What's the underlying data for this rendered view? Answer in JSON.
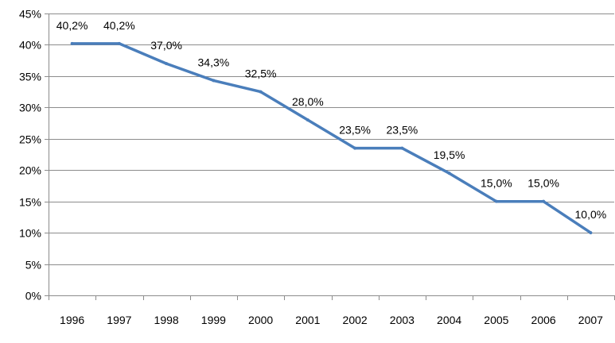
{
  "chart_data": {
    "type": "line",
    "categories": [
      "1996",
      "1997",
      "1998",
      "1999",
      "2000",
      "2001",
      "2002",
      "2003",
      "2004",
      "2005",
      "2006",
      "2007"
    ],
    "values": [
      40.2,
      40.2,
      37.0,
      34.3,
      32.5,
      28.0,
      23.5,
      23.5,
      19.5,
      15.0,
      15.0,
      10.0
    ],
    "data_labels": [
      "40,2%",
      "40,2%",
      "37,0%",
      "34,3%",
      "32,5%",
      "28,0%",
      "23,5%",
      "23,5%",
      "19,5%",
      "15,0%",
      "15,0%",
      "10,0%"
    ],
    "y_ticks": [
      {
        "value": 0,
        "label": "0%"
      },
      {
        "value": 5,
        "label": "5%"
      },
      {
        "value": 10,
        "label": "10%"
      },
      {
        "value": 15,
        "label": "15%"
      },
      {
        "value": 20,
        "label": "20%"
      },
      {
        "value": 25,
        "label": "25%"
      },
      {
        "value": 30,
        "label": "30%"
      },
      {
        "value": 35,
        "label": "35%"
      },
      {
        "value": 40,
        "label": "40%"
      },
      {
        "value": 45,
        "label": "45%"
      }
    ],
    "ylim": [
      0,
      45
    ],
    "title": "",
    "xlabel": "",
    "ylabel": "",
    "grid": true,
    "legend": "none",
    "colors": {
      "line": "#4a7ebb",
      "grid": "#8c8c8c",
      "axis": "#8c8c8c"
    }
  }
}
